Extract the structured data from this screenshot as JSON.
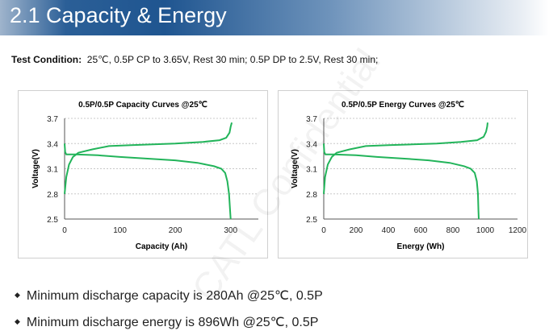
{
  "header": {
    "title": "2.1 Capacity & Energy"
  },
  "test_condition": {
    "label": "Test Condition:",
    "text": "25℃,  0.5P CP to 3.65V, Rest 30 min;  0.5P DP to 2.5V, Rest 30 min;"
  },
  "watermark": "CATL Confidential",
  "colors": {
    "curve": "#22b45a",
    "banner": "#1f5590"
  },
  "chart_data": [
    {
      "type": "line",
      "title": "0.5P/0.5P Capacity Curves @25℃",
      "xlabel": "Capacity (Ah)",
      "ylabel": "Voltage(V)",
      "xlim": [
        0,
        350
      ],
      "ylim": [
        2.5,
        3.7
      ],
      "xticks": [
        "0",
        "100",
        "200",
        "300"
      ],
      "xtick_values": [
        0,
        100,
        200,
        300
      ],
      "yticks": [
        "3.7",
        "3.4",
        "3.1",
        "2.8",
        "2.5"
      ],
      "ytick_values": [
        3.7,
        3.4,
        3.1,
        2.8,
        2.5
      ],
      "grid": "horizontal dashed",
      "series": [
        {
          "x": [
            0,
            3,
            8,
            15,
            25,
            50,
            80,
            120,
            160,
            200,
            250,
            280,
            292,
            298,
            300,
            302
          ],
          "y": [
            2.8,
            3.0,
            3.15,
            3.24,
            3.29,
            3.33,
            3.37,
            3.38,
            3.39,
            3.4,
            3.42,
            3.44,
            3.47,
            3.53,
            3.6,
            3.65
          ]
        },
        {
          "x": [
            0,
            1,
            3,
            20,
            60,
            100,
            150,
            200,
            240,
            270,
            283,
            290,
            294,
            297,
            299,
            300
          ],
          "y": [
            3.4,
            3.3,
            3.27,
            3.27,
            3.26,
            3.24,
            3.22,
            3.2,
            3.17,
            3.13,
            3.1,
            3.05,
            2.95,
            2.8,
            2.6,
            2.5
          ]
        }
      ]
    },
    {
      "type": "line",
      "title": "0.5P/0.5P Energy Curves @25℃",
      "xlabel": "Energy (Wh)",
      "ylabel": "Voltage(V)",
      "xlim": [
        0,
        1200
      ],
      "ylim": [
        2.5,
        3.7
      ],
      "xticks": [
        "0",
        "200",
        "400",
        "600",
        "800",
        "1000",
        "1200"
      ],
      "xtick_values": [
        0,
        200,
        400,
        600,
        800,
        1000,
        1200
      ],
      "yticks": [
        "3.7",
        "3.4",
        "3.1",
        "2.8",
        "2.5"
      ],
      "ytick_values": [
        3.7,
        3.4,
        3.1,
        2.8,
        2.5
      ],
      "grid": "horizontal dashed",
      "series": [
        {
          "x": [
            0,
            8,
            25,
            50,
            80,
            160,
            260,
            400,
            550,
            700,
            850,
            950,
            990,
            1005,
            1012,
            1015
          ],
          "y": [
            2.8,
            3.0,
            3.15,
            3.24,
            3.29,
            3.33,
            3.37,
            3.38,
            3.39,
            3.4,
            3.42,
            3.44,
            3.48,
            3.54,
            3.6,
            3.65
          ]
        },
        {
          "x": [
            0,
            3,
            10,
            60,
            200,
            330,
            500,
            650,
            780,
            870,
            910,
            935,
            948,
            955,
            958,
            960
          ],
          "y": [
            3.4,
            3.3,
            3.27,
            3.27,
            3.26,
            3.24,
            3.22,
            3.2,
            3.17,
            3.13,
            3.1,
            3.05,
            2.95,
            2.8,
            2.6,
            2.5
          ]
        }
      ]
    }
  ],
  "bullets": [
    "Minimum discharge capacity is 280Ah @25℃, 0.5P",
    "Minimum discharge energy is 896Wh @25℃, 0.5P"
  ]
}
